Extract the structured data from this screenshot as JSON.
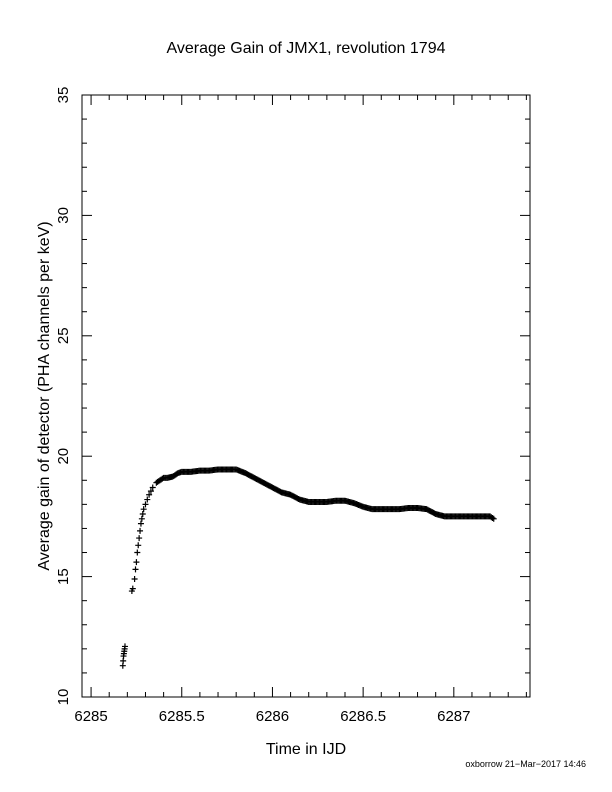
{
  "chart_data": {
    "type": "scatter",
    "title": "Average Gain of JMX1, revolution 1794",
    "xlabel": "Time in IJD",
    "ylabel": "Average gain of detector (PHA channels per keV)",
    "xlim": [
      6284.95,
      6287.42
    ],
    "ylim": [
      10,
      35
    ],
    "xticks": [
      6285,
      6285.5,
      6286,
      6286.5,
      6287
    ],
    "xtick_labels": [
      "6285",
      "6285.5",
      "6286",
      "6286.5",
      "6287"
    ],
    "yticks": [
      10,
      15,
      20,
      25,
      30,
      35
    ],
    "ytick_labels": [
      "10",
      "15",
      "20",
      "25",
      "30",
      "35"
    ],
    "marker": "plus",
    "grid": false,
    "series": [
      {
        "x": [
          6285.175,
          6285.177,
          6285.179,
          6285.181,
          6285.183,
          6285.185,
          6285.187,
          6285.225,
          6285.23,
          6285.24,
          6285.245,
          6285.25,
          6285.255,
          6285.26,
          6285.265,
          6285.27,
          6285.275,
          6285.28,
          6285.285,
          6285.29,
          6285.3,
          6285.31,
          6285.32,
          6285.33,
          6285.34,
          6285.36,
          6285.38,
          6285.4,
          6285.42,
          6285.45,
          6285.48,
          6285.5,
          6285.55,
          6285.6,
          6285.65,
          6285.7,
          6285.75,
          6285.78,
          6285.8,
          6285.85,
          6285.9,
          6285.95,
          6286.0,
          6286.05,
          6286.1,
          6286.15,
          6286.2,
          6286.25,
          6286.3,
          6286.35,
          6286.4,
          6286.45,
          6286.5,
          6286.55,
          6286.6,
          6286.65,
          6286.7,
          6286.75,
          6286.8,
          6286.85,
          6286.9,
          6286.95,
          6287.0,
          6287.05,
          6287.1,
          6287.15,
          6287.2,
          6287.22
        ],
        "y": [
          11.3,
          11.5,
          11.7,
          11.8,
          11.9,
          12.0,
          12.1,
          14.4,
          14.5,
          14.9,
          15.3,
          15.6,
          16.0,
          16.3,
          16.6,
          16.9,
          17.2,
          17.4,
          17.6,
          17.8,
          18.0,
          18.2,
          18.4,
          18.55,
          18.7,
          18.9,
          19.0,
          19.1,
          19.1,
          19.15,
          19.3,
          19.35,
          19.35,
          19.4,
          19.4,
          19.45,
          19.45,
          19.45,
          19.45,
          19.3,
          19.1,
          18.9,
          18.7,
          18.5,
          18.4,
          18.2,
          18.1,
          18.1,
          18.1,
          18.15,
          18.15,
          18.05,
          17.9,
          17.8,
          17.8,
          17.8,
          17.8,
          17.85,
          17.85,
          17.8,
          17.6,
          17.5,
          17.5,
          17.5,
          17.5,
          17.5,
          17.5,
          17.4
        ]
      }
    ]
  },
  "footer_text": "oxborrow 21−Mar−2017 14:46"
}
